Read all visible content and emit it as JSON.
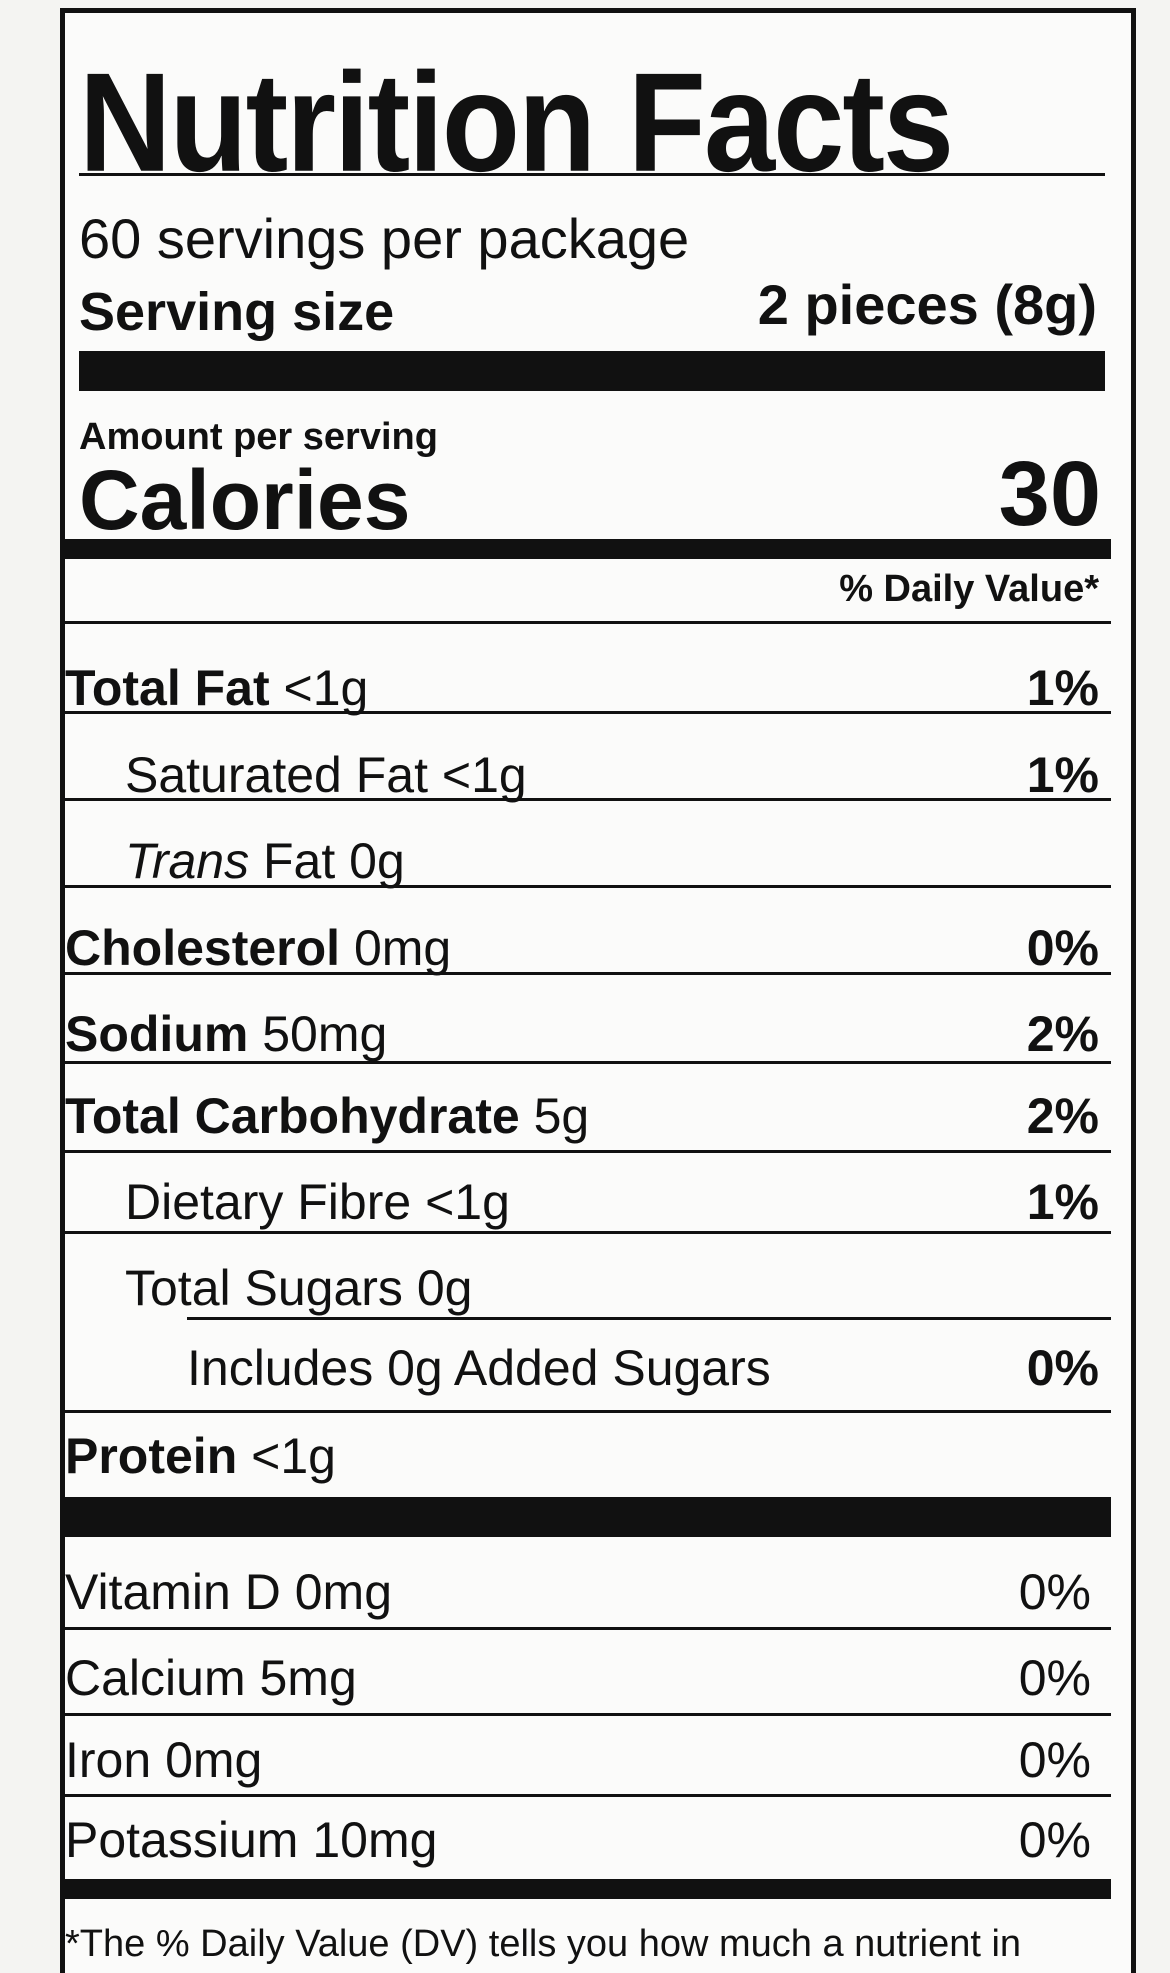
{
  "header": {
    "title": "Nutrition Facts",
    "servings": "60 servings per package",
    "serving_size_label": "Serving size",
    "serving_size_value": "2 pieces (8g)"
  },
  "calories": {
    "amount_per_serving": "Amount per serving",
    "label": "Calories",
    "value": "30"
  },
  "daily_value_header": "% Daily Value*",
  "nutrients": [
    {
      "name": "Total Fat",
      "amount": "<1g",
      "dv": "1%"
    },
    {
      "name": "Saturated Fat",
      "amount": "<1g",
      "dv": "1%"
    },
    {
      "name_italic": "Trans",
      "name": "Fat",
      "amount": "0g"
    },
    {
      "name": "Cholesterol",
      "amount": "0mg",
      "dv": "0%"
    },
    {
      "name": "Sodium",
      "amount": "50mg",
      "dv": "2%"
    },
    {
      "name": "Total Carbohydrate",
      "amount": "5g",
      "dv": "2%"
    },
    {
      "name": "Dietary Fibre",
      "amount": "<1g",
      "dv": "1%"
    },
    {
      "name": "Total Sugars",
      "amount": "0g"
    },
    {
      "name": "Includes 0g Added Sugars",
      "dv": "0%"
    },
    {
      "name": "Protein",
      "amount": "<1g"
    }
  ],
  "vitamins": [
    {
      "name": "Vitamin D",
      "amount": "0mg",
      "dv": "0%"
    },
    {
      "name": "Calcium",
      "amount": "5mg",
      "dv": "0%"
    },
    {
      "name": "Iron",
      "amount": "0mg",
      "dv": "0%"
    },
    {
      "name": "Potassium",
      "amount": "10mg",
      "dv": "0%"
    }
  ],
  "footnote": "*The % Daily Value (DV) tells you how much a nutrient in"
}
